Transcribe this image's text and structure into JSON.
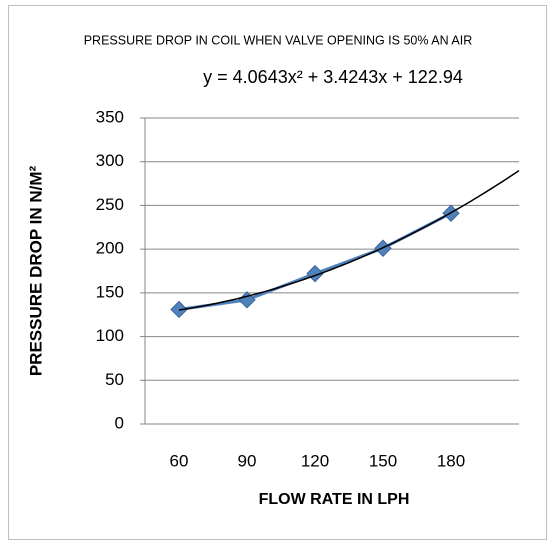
{
  "chart_data": {
    "type": "line",
    "title": "PRESSURE DROP IN COIL WHEN VALVE OPENING IS 50% AN AIR",
    "x_label": "FLOW RATE IN LPH",
    "y_label": "PRESSURE DROP IN N/M²",
    "categories": [
      "60",
      "90",
      "120",
      "150",
      "180"
    ],
    "series": [
      {
        "name": "PRESSURE DROP",
        "color": "#4f81bd",
        "values": [
          131,
          142,
          172,
          201,
          241
        ]
      }
    ],
    "ylim": [
      0,
      350
    ],
    "yticks": [
      0,
      50,
      100,
      150,
      200,
      250,
      300,
      350
    ],
    "grid": true,
    "trendline": {
      "equation": "y = 4.0643x² + 3.4243x + 122.94",
      "coefficients": [
        4.0643,
        3.4243,
        122.94
      ],
      "color": "#000000"
    }
  }
}
